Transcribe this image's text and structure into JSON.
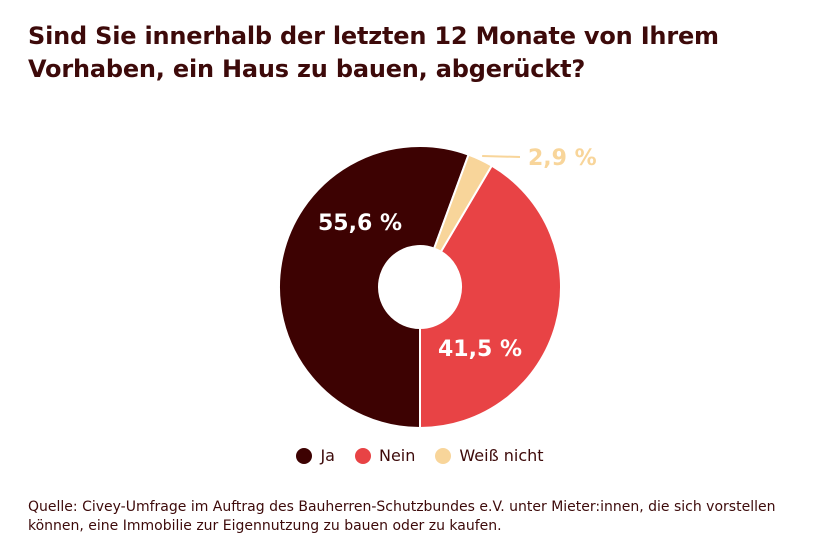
{
  "title": "Sind Sie innerhalb der letzten 12 Monate von Ihrem Vorhaben, ein Haus zu bauen, abgerückt?",
  "source": "Quelle: Civey-Umfrage im Auftrag des Bauherren-Schutzbundes e.V. unter Mieter:innen, die sich vorstellen können, eine Immobilie zur Eigennutzung zu bauen oder zu kaufen.",
  "colors": {
    "ja": "#3d0202",
    "nein": "#e84345",
    "weiss_nicht": "#f8d59a",
    "text_dark": "#3d0a0a",
    "label_light": "#ffffff"
  },
  "chart_data": {
    "type": "pie",
    "donut": true,
    "categories": [
      "Ja",
      "Nein",
      "Weiß nicht"
    ],
    "values": [
      55.6,
      41.5,
      2.9
    ],
    "value_labels": [
      "55,6 %",
      "41,5 %",
      "2,9 %"
    ],
    "legend": [
      "Ja",
      "Nein",
      "Weiß nicht"
    ],
    "legend_position": "bottom"
  }
}
